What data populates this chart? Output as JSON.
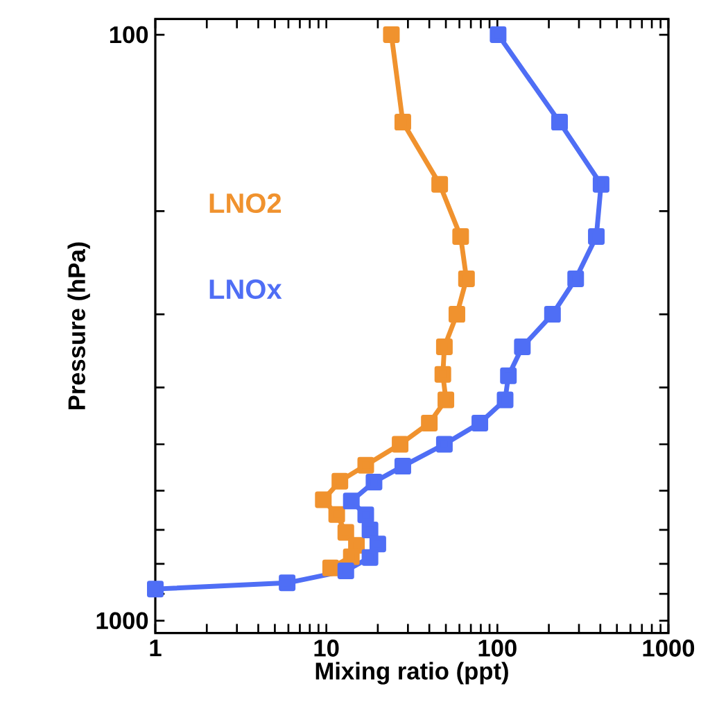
{
  "chart_data": {
    "type": "line",
    "xlabel": "Mixing ratio (ppt)",
    "ylabel": "Pressure (hPa)",
    "log": "xy",
    "marker": "square",
    "line_style": "solid",
    "grid": false,
    "legend": false,
    "xlim": [
      1,
      1000
    ],
    "ylim": [
      1050,
      94
    ],
    "xticks": [
      1,
      {
        "value": 2,
        "label": null
      },
      {
        "value": 3,
        "label": null
      },
      {
        "value": 4,
        "label": null
      },
      {
        "value": 5,
        "label": null
      },
      {
        "value": 6,
        "label": null
      },
      {
        "value": 7,
        "label": null
      },
      {
        "value": 8,
        "label": null
      },
      {
        "value": 9,
        "label": null
      },
      10,
      {
        "value": 20,
        "label": null
      },
      {
        "value": 30,
        "label": null
      },
      {
        "value": 40,
        "label": null
      },
      {
        "value": 50,
        "label": null
      },
      {
        "value": 60,
        "label": null
      },
      {
        "value": 70,
        "label": null
      },
      {
        "value": 80,
        "label": null
      },
      {
        "value": 90,
        "label": null
      },
      100,
      {
        "value": 200,
        "label": null
      },
      {
        "value": 300,
        "label": null
      },
      {
        "value": 400,
        "label": null
      },
      {
        "value": 500,
        "label": null
      },
      {
        "value": 600,
        "label": null
      },
      {
        "value": 700,
        "label": null
      },
      {
        "value": 800,
        "label": null
      },
      {
        "value": 900,
        "label": null
      },
      1000
    ],
    "yticks": [
      100,
      {
        "value": 200,
        "label": null
      },
      {
        "value": 300,
        "label": null
      },
      {
        "value": 400,
        "label": null
      },
      {
        "value": 500,
        "label": null
      },
      {
        "value": 600,
        "label": null
      },
      {
        "value": 700,
        "label": null
      },
      {
        "value": 800,
        "label": null
      },
      {
        "value": 900,
        "label": null
      },
      1000
    ],
    "series": [
      {
        "name": "LNO2",
        "color": "#f0922e",
        "x": [
          24,
          28,
          46,
          61,
          66,
          58,
          49,
          48,
          50,
          40,
          27,
          17,
          12,
          9.6,
          11.5,
          13,
          15,
          14,
          10.6
        ],
        "values": [
          100,
          141,
          180,
          221,
          261,
          300,
          341,
          380,
          420,
          460,
          500,
          543,
          578,
          622,
          659,
          707,
          744,
          778,
          813
        ]
      },
      {
        "name": "LNOx",
        "color": "#4f6ef5",
        "x": [
          101,
          231,
          404,
          379,
          287,
          210,
          140,
          116,
          111,
          79,
          49,
          28,
          19,
          14,
          17,
          18,
          20,
          18,
          13,
          5.9,
          1
        ],
        "values": [
          100,
          141,
          180,
          221,
          261,
          300,
          341,
          382,
          420,
          460,
          500,
          545,
          580,
          625,
          660,
          700,
          740,
          780,
          822,
          862,
          883
        ]
      }
    ]
  }
}
